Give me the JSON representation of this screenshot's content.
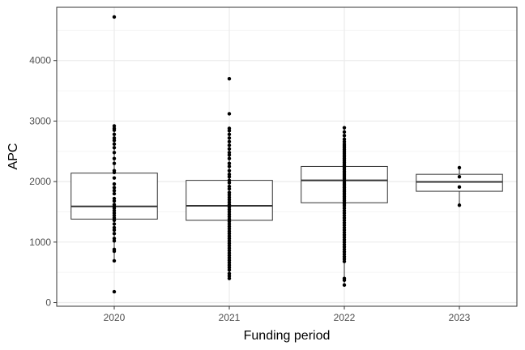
{
  "chart_data": {
    "type": "boxplot",
    "title": "",
    "xlabel": "Funding period",
    "ylabel": "APC",
    "ylim": [
      -60,
      4880
    ],
    "yticks": [
      0,
      1000,
      2000,
      3000,
      4000
    ],
    "grid": true,
    "legend": "none",
    "colors": {
      "box_fill": "#ffffff",
      "box_stroke": "#333333",
      "point": "#000000",
      "grid_major": "#ebebeb",
      "grid_minor": "#f5f5f5",
      "panel_border": "#333333"
    },
    "categories": [
      "2020",
      "2021",
      "2022",
      "2023"
    ],
    "boxes": [
      {
        "category": "2020",
        "q1": 1380,
        "median": 1590,
        "q3": 2140,
        "whisker_low": 690,
        "whisker_high": 2920
      },
      {
        "category": "2021",
        "q1": 1360,
        "median": 1600,
        "q3": 2020,
        "whisker_low": 400,
        "whisker_high": 2880
      },
      {
        "category": "2022",
        "q1": 1650,
        "median": 2020,
        "q3": 2250,
        "whisker_low": 290,
        "whisker_high": 2890
      },
      {
        "category": "2023",
        "q1": 1840,
        "median": 1995,
        "q3": 2120,
        "whisker_low": 1610,
        "whisker_high": 2230
      }
    ],
    "points": [
      {
        "category": "2020",
        "values": [
          4720,
          2920,
          2880,
          2850,
          2780,
          2720,
          2680,
          2620,
          2560,
          2480,
          2380,
          2300,
          2180,
          2150,
          2060,
          1960,
          1900,
          1850,
          1800,
          1720,
          1680,
          1620,
          1590,
          1560,
          1520,
          1480,
          1440,
          1400,
          1360,
          1300,
          1240,
          1200,
          1140,
          1060,
          1020,
          880,
          850,
          690,
          180
        ]
      },
      {
        "category": "2021",
        "values": [
          3700,
          3120,
          2880,
          2840,
          2780,
          2720,
          2660,
          2600,
          2540,
          2480,
          2440,
          2380,
          2300,
          2250,
          2180,
          2120,
          2080,
          2020,
          1980,
          1920,
          1880,
          1820,
          1780,
          1740,
          1700,
          1660,
          1620,
          1580,
          1540,
          1500,
          1460,
          1420,
          1380,
          1340,
          1300,
          1260,
          1220,
          1180,
          1140,
          1100,
          1060,
          1020,
          980,
          940,
          900,
          860,
          820,
          780,
          740,
          700,
          660,
          620,
          580,
          540,
          480,
          440,
          400
        ]
      },
      {
        "category": "2022",
        "values": [
          2890,
          2820,
          2760,
          2700,
          2660,
          2620,
          2590,
          2560,
          2530,
          2500,
          2470,
          2440,
          2410,
          2380,
          2350,
          2320,
          2290,
          2260,
          2230,
          2200,
          2170,
          2140,
          2110,
          2080,
          2050,
          2020,
          1990,
          1960,
          1930,
          1900,
          1870,
          1840,
          1810,
          1780,
          1750,
          1720,
          1690,
          1660,
          1630,
          1600,
          1560,
          1520,
          1480,
          1440,
          1400,
          1360,
          1320,
          1280,
          1240,
          1200,
          1160,
          1120,
          1080,
          1040,
          1000,
          960,
          920,
          880,
          840,
          800,
          760,
          720,
          680,
          400,
          370,
          290
        ]
      },
      {
        "category": "2023",
        "values": [
          2230,
          2080,
          1910,
          1610
        ]
      }
    ]
  }
}
